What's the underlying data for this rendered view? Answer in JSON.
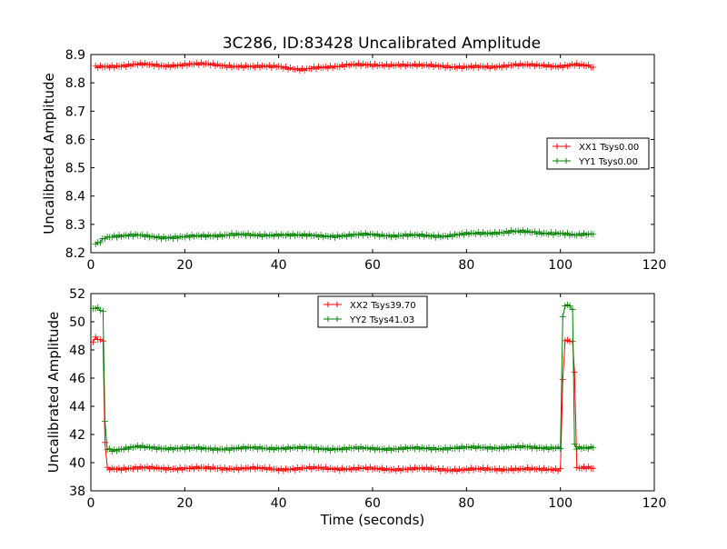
{
  "chart_data": [
    {
      "type": "line",
      "title": "3C286, ID:83428 Uncalibrated Amplitude",
      "xlabel": "",
      "ylabel": "Uncalibrated Amplitude",
      "xlim": [
        0,
        120
      ],
      "ylim": [
        8.2,
        8.9
      ],
      "xticks": [
        "0",
        "20",
        "40",
        "60",
        "80",
        "100",
        "120"
      ],
      "yticks": [
        "8.2",
        "8.3",
        "8.4",
        "8.5",
        "8.6",
        "8.7",
        "8.8",
        "8.9"
      ],
      "grid": false,
      "legend_position": "center-right",
      "series": [
        {
          "name": "XX1 Tsys0.00",
          "color": "#ff0000",
          "marker": "plus",
          "x": [
            1,
            5,
            10,
            15,
            20,
            25,
            30,
            35,
            40,
            45,
            50,
            55,
            60,
            65,
            70,
            75,
            80,
            85,
            90,
            95,
            100,
            103,
            107
          ],
          "y": [
            8.855,
            8.86,
            8.865,
            8.86,
            8.865,
            8.865,
            8.86,
            8.855,
            8.86,
            8.845,
            8.855,
            8.865,
            8.86,
            8.865,
            8.86,
            8.86,
            8.855,
            8.855,
            8.865,
            8.86,
            8.86,
            8.865,
            8.855
          ]
        },
        {
          "name": "YY1 Tsys0.00",
          "color": "#008000",
          "marker": "plus",
          "x": [
            1,
            2,
            3,
            5,
            10,
            15,
            20,
            25,
            30,
            35,
            40,
            45,
            50,
            55,
            60,
            65,
            70,
            75,
            80,
            85,
            90,
            95,
            100,
            103,
            107
          ],
          "y": [
            8.23,
            8.24,
            8.255,
            8.26,
            8.26,
            8.255,
            8.255,
            8.26,
            8.265,
            8.26,
            8.265,
            8.26,
            8.26,
            8.26,
            8.265,
            8.26,
            8.26,
            8.26,
            8.265,
            8.27,
            8.275,
            8.27,
            8.27,
            8.26,
            8.265
          ]
        }
      ]
    },
    {
      "type": "line",
      "title": "",
      "xlabel": "Time (seconds)",
      "ylabel": "Uncalibrated Amplitude",
      "xlim": [
        0,
        120
      ],
      "ylim": [
        38,
        52
      ],
      "xticks": [
        "0",
        "20",
        "40",
        "60",
        "80",
        "100",
        "120"
      ],
      "yticks": [
        "38",
        "40",
        "42",
        "44",
        "46",
        "48",
        "50",
        "52"
      ],
      "grid": false,
      "legend_position": "top-center",
      "series": [
        {
          "name": "XX2 Tsys39.70",
          "color": "#ff0000",
          "marker": "plus",
          "x": [
            0.5,
            1,
            2,
            2.6,
            3,
            3.5,
            5,
            10,
            20,
            30,
            40,
            50,
            60,
            70,
            80,
            90,
            95,
            100,
            100.5,
            101,
            102,
            102.6,
            103,
            103.5,
            105,
            107
          ],
          "y": [
            48.6,
            48.8,
            48.7,
            48.6,
            41.5,
            39.6,
            39.6,
            39.6,
            39.6,
            39.6,
            39.55,
            39.6,
            39.55,
            39.55,
            39.5,
            39.55,
            39.5,
            39.55,
            46.0,
            48.7,
            48.7,
            48.5,
            46.5,
            39.6,
            39.6,
            39.6
          ]
        },
        {
          "name": "YY2 Tsys41.03",
          "color": "#008000",
          "marker": "plus",
          "x": [
            0.5,
            1,
            2,
            2.6,
            3,
            3.5,
            5,
            10,
            20,
            30,
            40,
            50,
            60,
            70,
            80,
            90,
            95,
            100,
            100.5,
            101,
            102,
            102.6,
            103,
            103.5,
            105,
            107
          ],
          "y": [
            50.9,
            51.0,
            50.9,
            50.8,
            43.0,
            41.0,
            40.9,
            41.1,
            41.0,
            41.0,
            41.05,
            41.0,
            41.0,
            41.0,
            41.05,
            41.1,
            41.05,
            41.1,
            50.3,
            51.2,
            51.1,
            50.9,
            41.2,
            41.0,
            41.0,
            41.05
          ]
        }
      ]
    }
  ]
}
